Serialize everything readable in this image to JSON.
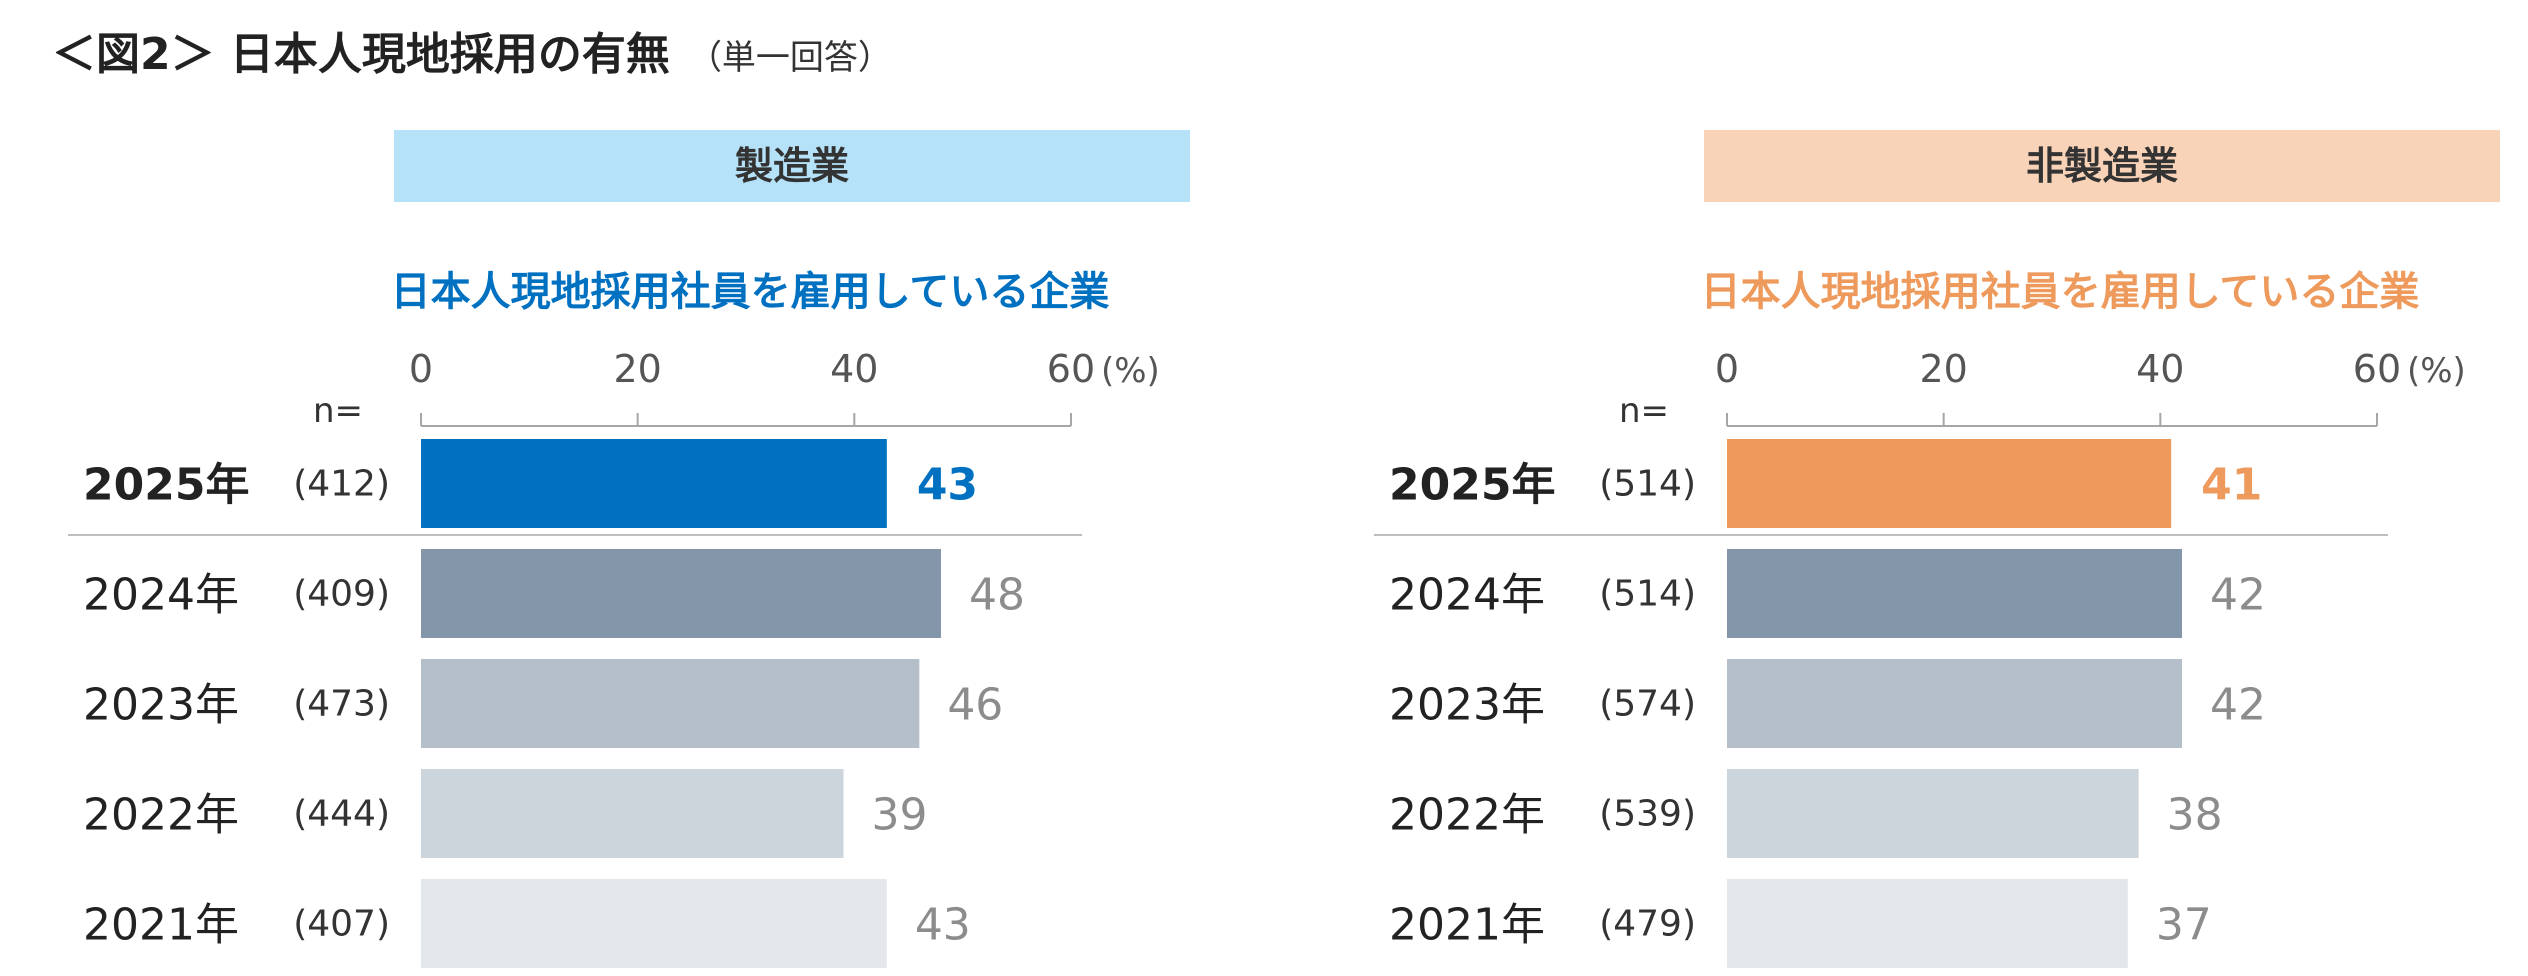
{
  "header": {
    "title": "＜図2＞ 日本人現地採用の有無",
    "subtitle": "（単一回答）"
  },
  "chart_data": [
    {
      "type": "bar",
      "orientation": "horizontal",
      "panel_label": "製造業",
      "title": "日本人現地採用社員を雇用している企業",
      "xlim": [
        0,
        60
      ],
      "ticks": [
        "0",
        "20",
        "40",
        "60"
      ],
      "unit": "(%)",
      "n_label": "n=",
      "categories": [
        "2025年",
        "2024年",
        "2023年",
        "2022年",
        "2021年"
      ],
      "n": [
        "(412)",
        "(409)",
        "(473)",
        "(444)",
        "(407)"
      ],
      "values": [
        43,
        48,
        46,
        39,
        43
      ],
      "colors": [
        "#0070c0",
        "#8496aa",
        "#b4bfca",
        "#ccd4dc",
        "#e3e7ec"
      ],
      "label_colors": [
        "#0070c0",
        "#8c8c8c",
        "#8c8c8c",
        "#8c8c8c",
        "#8c8c8c"
      ],
      "accent": "#0070c0",
      "banner_color": "#b5e2f8"
    },
    {
      "type": "bar",
      "orientation": "horizontal",
      "panel_label": "非製造業",
      "title": "日本人現地採用社員を雇用している企業",
      "xlim": [
        0,
        60
      ],
      "ticks": [
        "0",
        "20",
        "40",
        "60"
      ],
      "unit": "(%)",
      "n_label": "n=",
      "categories": [
        "2025年",
        "2024年",
        "2023年",
        "2022年",
        "2021年"
      ],
      "n": [
        "(514)",
        "(514)",
        "(574)",
        "(539)",
        "(479)"
      ],
      "values": [
        41,
        42,
        42,
        38,
        37
      ],
      "colors": [
        "#ed9a5c",
        "#8496aa",
        "#b4bfca",
        "#ccd4dc",
        "#e3e7ec"
      ],
      "label_colors": [
        "#ed9a5c",
        "#8c8c8c",
        "#8c8c8c",
        "#8c8c8c",
        "#8c8c8c"
      ],
      "accent": "#ed9a5c",
      "banner_color": "#f8d3b8"
    }
  ]
}
